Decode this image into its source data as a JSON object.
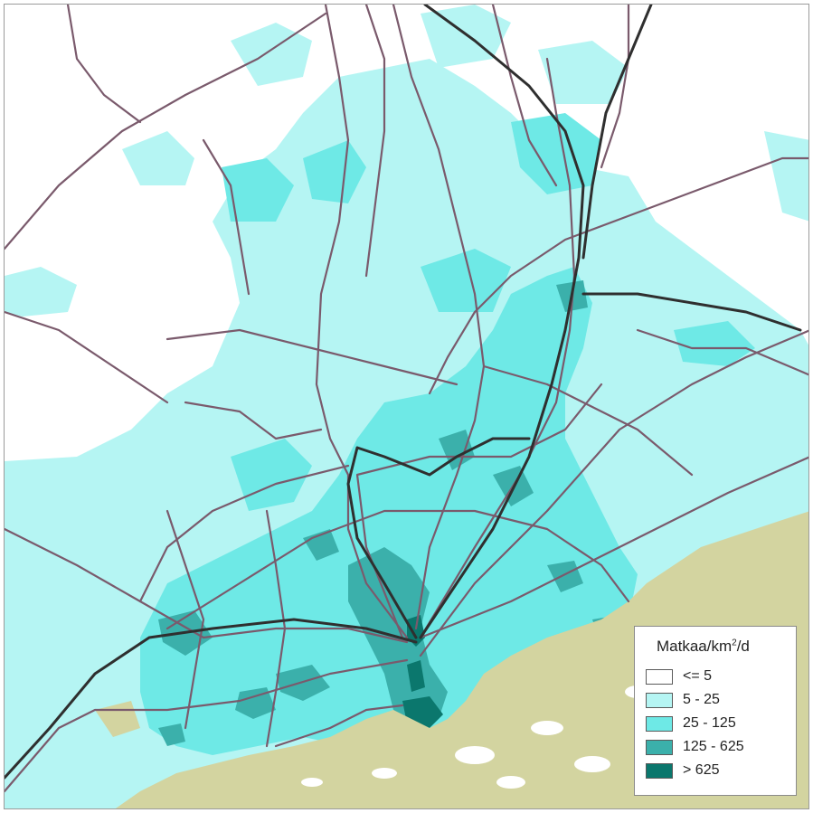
{
  "legend": {
    "title_main": "Matkaa/km",
    "title_sup": "2",
    "title_tail": "/d",
    "items": [
      {
        "label": "<= 5",
        "color": "#ffffff"
      },
      {
        "label": "5 - 25",
        "color": "#b5f5f3"
      },
      {
        "label": "25 - 125",
        "color": "#6ee9e6"
      },
      {
        "label": "125 - 625",
        "color": "#3bb0ab"
      },
      {
        "label": "> 625",
        "color": "#0b776d"
      }
    ]
  },
  "colors": {
    "background": "#ffffff",
    "sea": "#d3d4a0",
    "density_low": "#b5f5f3",
    "density_mid": "#6ee9e6",
    "density_high": "#3bb0ab",
    "density_top": "#0b776d",
    "road": "#7a5a6c",
    "rail": "#2f2f2f"
  }
}
